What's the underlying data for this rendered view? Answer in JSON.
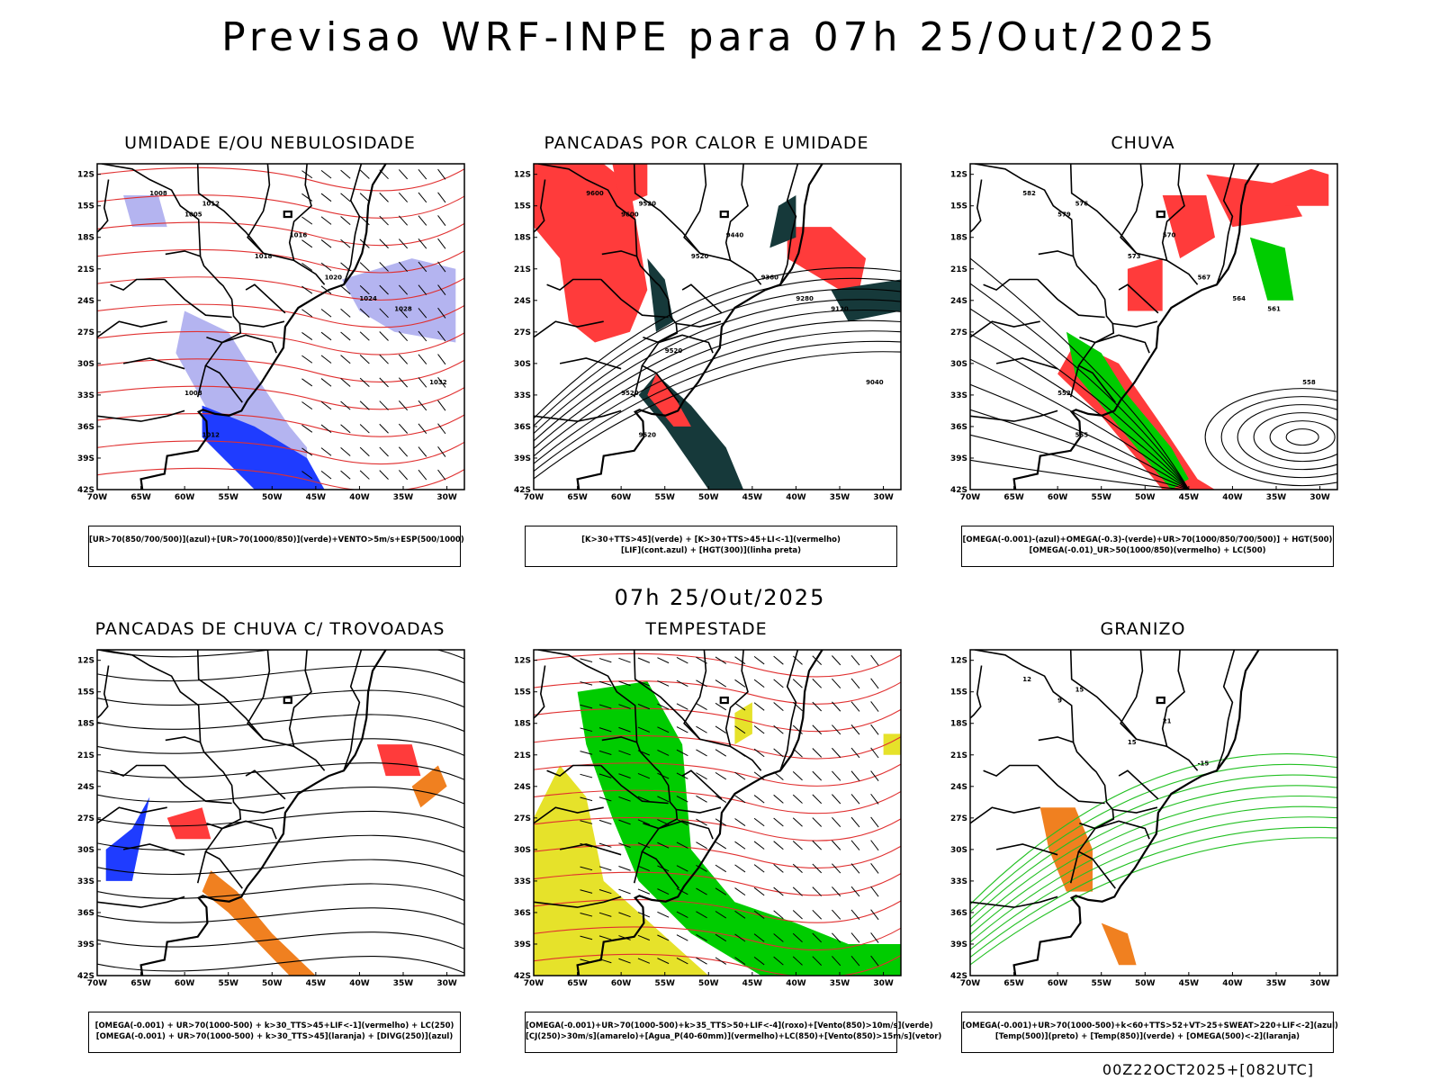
{
  "header": {
    "title": "Previsao WRF-INPE  para 07h 25/Out/2025"
  },
  "mid_title": "07h 25/Out/2025",
  "footer": "00Z22OCT2025+[082UTC]",
  "axes": {
    "lat_labels": [
      "12S",
      "15S",
      "18S",
      "21S",
      "24S",
      "27S",
      "30S",
      "33S",
      "36S",
      "39S",
      "42S"
    ],
    "lon_labels": [
      "70W",
      "65W",
      "60W",
      "55W",
      "50W",
      "45W",
      "40W",
      "35W",
      "30W"
    ]
  },
  "colors": {
    "red": "#ff3b3b",
    "green": "#00cc00",
    "blue": "#1f3cff",
    "lavender": "#b4b4f0",
    "darkteal": "#16393a",
    "yellow": "#e6e22a",
    "orange": "#f08020",
    "purple": "#5050f0"
  },
  "panels": [
    {
      "title": "UMIDADE E/OU NEBULOSIDADE",
      "legend": [
        "[UR>70(850/700/500)](azul)+[UR>70(1000/850)](verde)+VENTO>5m/s+ESP(500/1000)"
      ],
      "contour_labels": [
        "1008",
        "1005",
        "1012",
        "1018",
        "1016",
        "1020",
        "1024",
        "1028",
        "1032",
        "1012",
        "1008"
      ]
    },
    {
      "title": "PANCADAS POR CALOR E UMIDADE",
      "legend": [
        "[K>30+TTS>45](verde) + [K>30+TTS>45+LI<-1](vermelho)",
        "[LIF](cont.azul) + [HGT(300)](linha preta)"
      ],
      "contour_labels": [
        "9600",
        "9600",
        "9520",
        "9520",
        "9440",
        "9360",
        "9280",
        "9120",
        "9040",
        "9520",
        "9520",
        "9520"
      ]
    },
    {
      "title": "CHUVA",
      "legend": [
        "[OMEGA(-0.001)-(azul)+OMEGA(-0.3)-(verde)+UR>70(1000/850/700/500)] + HGT(500)",
        "[OMEGA(-0.01)_UR>50(1000/850)(vermelho) + LC(500)"
      ],
      "contour_labels": [
        "582",
        "579",
        "576",
        "573",
        "570",
        "567",
        "564",
        "561",
        "558",
        "555",
        "552"
      ]
    },
    {
      "title": "PANCADAS DE CHUVA C/ TROVOADAS",
      "legend": [
        "[OMEGA(-0.001) + UR>70(1000-500) + k>30_TTS>45+LIF<-1](vermelho) + LC(250)",
        "[OMEGA(-0.001) + UR>70(1000-500) + k>30_TTS>45](laranja) + [DIVG(250)](azul)"
      ],
      "contour_labels": []
    },
    {
      "title": "TEMPESTADE",
      "legend": [
        "[OMEGA(-0.001)+UR>70(1000-500)+k>35_TTS>50+LIF<-4](roxo)+[Vento(850)>10m/s](verde)",
        "[CJ(250)>30m/s](amarelo)+[Agua_P(40-60mm)](vermelho)+LC(850)+[Vento(850)>15m/s](vetor)"
      ],
      "contour_labels": []
    },
    {
      "title": "GRANIZO",
      "legend": [
        "[OMEGA(-0.001)+UR>70(1000-500)+k<60+TTS>52+VT>25+SWEAT>220+LIF<-2](azul)",
        "[Temp(500)](preto) + [Temp(850)](verde) + [OMEGA(500)<-2](laranja)"
      ],
      "contour_labels": [
        "12",
        "9",
        "15",
        "15",
        "21",
        "-15"
      ]
    }
  ],
  "chart_data": [
    {
      "type": "map",
      "title": "UMIDADE E/OU NEBULOSIDADE",
      "lat_range": [
        -42,
        -11
      ],
      "lon_range": [
        -70,
        -28
      ],
      "fields": [
        "UR>70 850/700/500 (azul)",
        "UR>70 1000/850 (verde)",
        "VENTO>5m/s",
        "ESP 500/1000"
      ]
    },
    {
      "type": "map",
      "title": "PANCADAS POR CALOR E UMIDADE",
      "lat_range": [
        -42,
        -11
      ],
      "lon_range": [
        -70,
        -28
      ],
      "fields": [
        "K>30+TTS>45 (verde)",
        "K>30+TTS>45+LI<-1 (vermelho)",
        "LIF (cont.azul)",
        "HGT 300 (linha preta)"
      ]
    },
    {
      "type": "map",
      "title": "CHUVA",
      "lat_range": [
        -42,
        -11
      ],
      "lon_range": [
        -70,
        -28
      ],
      "fields": [
        "OMEGA -0.001 (azul)",
        "OMEGA -0.3 (verde)",
        "UR>50 (vermelho)",
        "HGT 500"
      ]
    },
    {
      "type": "map",
      "title": "PANCADAS DE CHUVA C/ TROVOADAS",
      "lat_range": [
        -42,
        -11
      ],
      "lon_range": [
        -70,
        -28
      ],
      "fields": [
        "vermelho",
        "laranja",
        "DIVG 250 (azul)",
        "LC 250"
      ]
    },
    {
      "type": "map",
      "title": "TEMPESTADE",
      "lat_range": [
        -42,
        -11
      ],
      "lon_range": [
        -70,
        -28
      ],
      "fields": [
        "roxo",
        "Vento 850>10m/s (verde)",
        "CJ 250>30m/s (amarelo)",
        "Agua_P (vermelho)",
        "LC 850"
      ]
    },
    {
      "type": "map",
      "title": "GRANIZO",
      "lat_range": [
        -42,
        -11
      ],
      "lon_range": [
        -70,
        -28
      ],
      "fields": [
        "azul",
        "Temp 500 (preto)",
        "Temp 850 (verde)",
        "OMEGA 500<-2 (laranja)"
      ]
    }
  ]
}
